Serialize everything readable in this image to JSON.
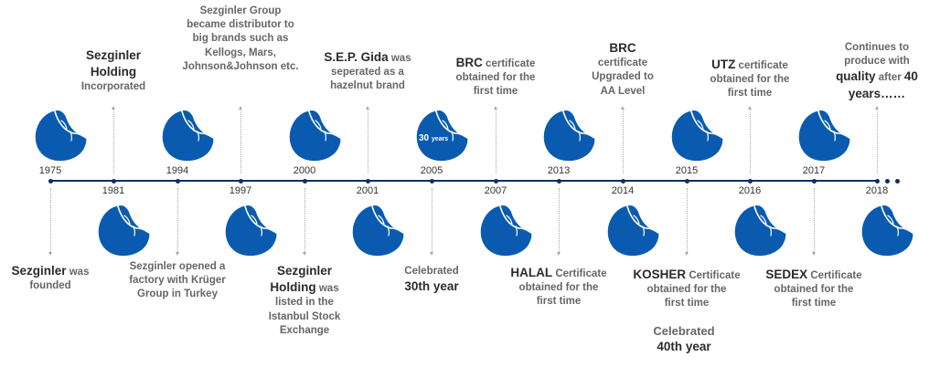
{
  "events": [
    {
      "year": "1975",
      "side": "below",
      "lines": [
        [
          {
            "t": "Sezginler",
            "b": true
          },
          {
            "t": " was"
          }
        ],
        [
          {
            "t": "founded"
          }
        ]
      ]
    },
    {
      "year": "1981",
      "side": "above",
      "lines": [
        [
          {
            "t": "Sezginler",
            "b": true
          }
        ],
        [
          {
            "t": "Holding",
            "b": true
          }
        ],
        [
          {
            "t": "Incorporated"
          }
        ]
      ]
    },
    {
      "year": "1994",
      "side": "below",
      "lines": [
        [
          {
            "t": "Sezginler opened a"
          }
        ],
        [
          {
            "t": "factory with Krüger"
          }
        ],
        [
          {
            "t": "Group in Turkey"
          }
        ]
      ]
    },
    {
      "year": "1997",
      "side": "above",
      "lines": [
        [
          {
            "t": "Sezginler Group"
          }
        ],
        [
          {
            "t": "became distributor to"
          }
        ],
        [
          {
            "t": "big brands such as"
          }
        ],
        [
          {
            "t": "Kellogs, Mars,"
          }
        ],
        [
          {
            "t": "Johnson&Johnson etc."
          }
        ]
      ]
    },
    {
      "year": "2000",
      "side": "below",
      "lines": [
        [
          {
            "t": "Sezginler",
            "b": true
          }
        ],
        [
          {
            "t": "Holding",
            "b": true
          },
          {
            "t": " was"
          }
        ],
        [
          {
            "t": "listed in the"
          }
        ],
        [
          {
            "t": "Istanbul Stock"
          }
        ],
        [
          {
            "t": "Exchange"
          }
        ]
      ]
    },
    {
      "year": "2001",
      "side": "above",
      "lines": [
        [
          {
            "t": "S.E.P. Gida",
            "b": true
          },
          {
            "t": " was"
          }
        ],
        [
          {
            "t": "seperated as a"
          }
        ],
        [
          {
            "t": "hazelnut brand"
          }
        ]
      ]
    },
    {
      "year": "2005",
      "side": "below",
      "badge": "30",
      "badge_unit": "years",
      "lines": [
        [
          {
            "t": "Celebrated"
          }
        ],
        [
          {
            "t": "30th year",
            "b": true
          }
        ]
      ]
    },
    {
      "year": "2007",
      "side": "above",
      "lines": [
        [
          {
            "t": "BRC",
            "b": true
          },
          {
            "t": " certificate"
          }
        ],
        [
          {
            "t": "obtained for the"
          }
        ],
        [
          {
            "t": "first time"
          }
        ]
      ]
    },
    {
      "year": "2013",
      "side": "below",
      "lines": [
        [
          {
            "t": "HALAL",
            "b": true
          },
          {
            "t": " Certificate"
          }
        ],
        [
          {
            "t": "obtained for the"
          }
        ],
        [
          {
            "t": "first time"
          }
        ]
      ]
    },
    {
      "year": "2014",
      "side": "above",
      "lines": [
        [
          {
            "t": "BRC",
            "b": true
          }
        ],
        [
          {
            "t": "certificate"
          }
        ],
        [
          {
            "t": "Upgraded to"
          }
        ],
        [
          {
            "t": "AA Level"
          }
        ]
      ]
    },
    {
      "year": "2015",
      "side": "below",
      "lines": [
        [
          {
            "t": "KOSHER",
            "b": true
          },
          {
            "t": " Certificate"
          }
        ],
        [
          {
            "t": "obtained for the"
          }
        ],
        [
          {
            "t": "first time"
          }
        ]
      ]
    },
    {
      "year": "2016",
      "side": "above",
      "lines": [
        [
          {
            "t": "UTZ",
            "b": true
          },
          {
            "t": " certificate"
          }
        ],
        [
          {
            "t": "obtained for the"
          }
        ],
        [
          {
            "t": "first time"
          }
        ]
      ]
    },
    {
      "year": "2017",
      "side": "below",
      "lines": [
        [
          {
            "t": "SEDEX",
            "b": true
          },
          {
            "t": " Certificate"
          }
        ],
        [
          {
            "t": "obtained for the"
          }
        ],
        [
          {
            "t": "first time"
          }
        ]
      ]
    },
    {
      "year": "2018",
      "side": "above",
      "lines": [
        [
          {
            "t": "Continues to"
          }
        ],
        [
          {
            "t": "produce with"
          }
        ],
        [
          {
            "t": "quality",
            "b": true
          },
          {
            "t": " after "
          },
          {
            "t": "40",
            "b": true
          }
        ],
        [
          {
            "t": "years……",
            "b": true
          }
        ]
      ]
    }
  ],
  "extra_note": {
    "lines": [
      [
        {
          "t": "Celebrated"
        }
      ],
      [
        {
          "t": "40th year",
          "b": true
        }
      ]
    ]
  },
  "colors": {
    "hazelnut": "#0a5bb0",
    "axis": "#0c2d6b",
    "text": "#666666",
    "bold": "#2b2b2b"
  },
  "icon": "hazelnut-icon"
}
